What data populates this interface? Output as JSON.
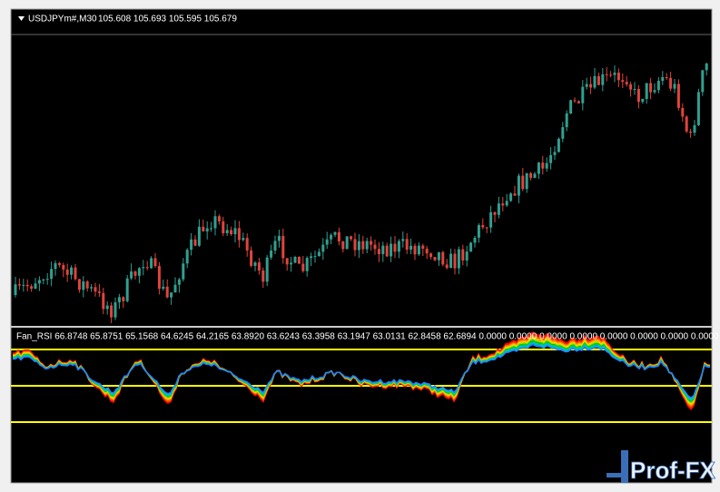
{
  "header": {
    "symbol": "USDJPYm#,M30",
    "ohlc": "105.608 105.693 105.595 105.679"
  },
  "indicator": {
    "label": "Fan_RSI 66.8748 65.8751 65.1568 64.6245 64.2165 63.8920 63.6243 63.3958 63.1947 63.0131 62.8458 62.6894 0.0000 0.0000 0.0000 0.0000 0.0000 0.0000 0.0000 0.0000 0.0000"
  },
  "watermark": "Prof-FX"
}
